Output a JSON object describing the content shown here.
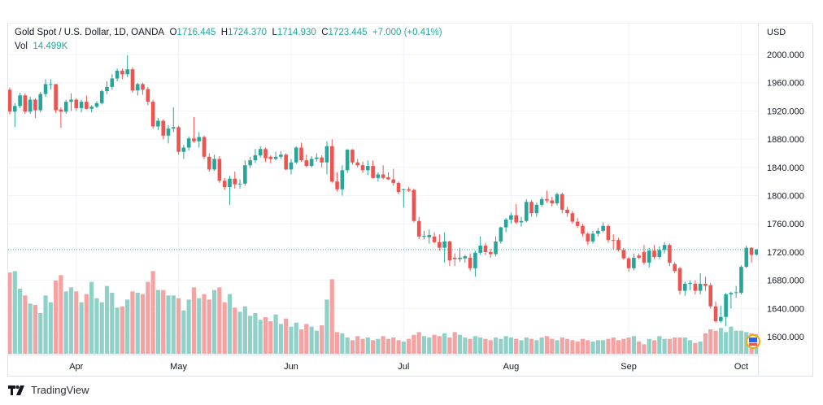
{
  "legend": {
    "symbol": "Gold Spot / U.S. Dollar, 1D, OANDA",
    "open_label": "O",
    "open": "1716.445",
    "high_label": "H",
    "high": "1724.370",
    "low_label": "L",
    "low": "1714.930",
    "close_label": "C",
    "close": "1723.445",
    "change": "+7.000 (+0.41%)",
    "vol_label": "Vol",
    "vol": "14.499K"
  },
  "currency": "USD",
  "footer": {
    "brand": "TradingView"
  },
  "colors": {
    "up": "#26a69a",
    "down": "#ef5350",
    "up_vol": "#8fd1c9",
    "down_vol": "#f5a3a2",
    "grid": "#f0f3fa",
    "text": "#131722"
  },
  "chart_data": {
    "type": "candlestick",
    "title": "Gold Spot / U.S. Dollar, 1D, OANDA",
    "ylabel": "USD",
    "ylim": [
      1575,
      2043
    ],
    "y_ticks": [
      "2000.000",
      "1960.000",
      "1920.000",
      "1880.000",
      "1840.000",
      "1800.000",
      "1760.000",
      "1720.000",
      "1680.000",
      "1640.000",
      "1600.000"
    ],
    "x_ticks": [
      {
        "label": "Apr",
        "index": 13
      },
      {
        "label": "May",
        "index": 33
      },
      {
        "label": "Jun",
        "index": 55
      },
      {
        "label": "Jul",
        "index": 77
      },
      {
        "label": "Aug",
        "index": 98
      },
      {
        "label": "Sep",
        "index": 121
      },
      {
        "label": "Oct",
        "index": 143
      }
    ],
    "last_price": 1723.445,
    "ohlc": [
      [
        1950,
        1953,
        1915,
        1919
      ],
      [
        1919,
        1931,
        1897,
        1927
      ],
      [
        1927,
        1946,
        1924,
        1942
      ],
      [
        1942,
        1945,
        1916,
        1919
      ],
      [
        1919,
        1940,
        1916,
        1936
      ],
      [
        1936,
        1938,
        1910,
        1921
      ],
      [
        1921,
        1947,
        1918,
        1944
      ],
      [
        1944,
        1965,
        1940,
        1958
      ],
      [
        1958,
        1965,
        1950,
        1958
      ],
      [
        1958,
        1958,
        1917,
        1921
      ],
      [
        1922,
        1925,
        1896,
        1919
      ],
      [
        1919,
        1936,
        1916,
        1933
      ],
      [
        1933,
        1945,
        1920,
        1936
      ],
      [
        1936,
        1938,
        1920,
        1924
      ],
      [
        1924,
        1936,
        1918,
        1933
      ],
      [
        1933,
        1942,
        1922,
        1923
      ],
      [
        1923,
        1928,
        1918,
        1926
      ],
      [
        1926,
        1934,
        1924,
        1931
      ],
      [
        1931,
        1950,
        1929,
        1948
      ],
      [
        1948,
        1962,
        1944,
        1954
      ],
      [
        1954,
        1972,
        1950,
        1966
      ],
      [
        1966,
        1980,
        1962,
        1977
      ],
      [
        1977,
        1980,
        1965,
        1972
      ],
      [
        1972,
        1999,
        1968,
        1979
      ],
      [
        1979,
        1982,
        1946,
        1949
      ],
      [
        1949,
        1960,
        1942,
        1958
      ],
      [
        1958,
        1960,
        1943,
        1950
      ],
      [
        1951,
        1954,
        1928,
        1933
      ],
      [
        1933,
        1936,
        1895,
        1898
      ],
      [
        1898,
        1910,
        1893,
        1906
      ],
      [
        1906,
        1908,
        1880,
        1885
      ],
      [
        1885,
        1900,
        1874,
        1895
      ],
      [
        1895,
        1925,
        1890,
        1897
      ],
      [
        1897,
        1899,
        1858,
        1862
      ],
      [
        1862,
        1872,
        1852,
        1868
      ],
      [
        1868,
        1884,
        1864,
        1881
      ],
      [
        1881,
        1911,
        1875,
        1877
      ],
      [
        1877,
        1890,
        1868,
        1883
      ],
      [
        1883,
        1885,
        1852,
        1855
      ],
      [
        1855,
        1860,
        1834,
        1837
      ],
      [
        1837,
        1858,
        1835,
        1852
      ],
      [
        1852,
        1856,
        1818,
        1821
      ],
      [
        1821,
        1825,
        1808,
        1812
      ],
      [
        1812,
        1828,
        1787,
        1824
      ],
      [
        1824,
        1834,
        1810,
        1816
      ],
      [
        1816,
        1823,
        1810,
        1817
      ],
      [
        1817,
        1850,
        1814,
        1843
      ],
      [
        1843,
        1855,
        1839,
        1850
      ],
      [
        1850,
        1866,
        1846,
        1857
      ],
      [
        1857,
        1870,
        1854,
        1866
      ],
      [
        1866,
        1868,
        1848,
        1853
      ],
      [
        1855,
        1857,
        1846,
        1852
      ],
      [
        1852,
        1862,
        1850,
        1855
      ],
      [
        1855,
        1863,
        1852,
        1858
      ],
      [
        1858,
        1860,
        1836,
        1837
      ],
      [
        1837,
        1852,
        1830,
        1847
      ],
      [
        1847,
        1870,
        1845,
        1868
      ],
      [
        1868,
        1875,
        1848,
        1850
      ],
      [
        1850,
        1858,
        1840,
        1842
      ],
      [
        1842,
        1856,
        1840,
        1852
      ],
      [
        1852,
        1860,
        1848,
        1854
      ],
      [
        1854,
        1857,
        1840,
        1847
      ],
      [
        1847,
        1877,
        1830,
        1870
      ],
      [
        1870,
        1880,
        1818,
        1820
      ],
      [
        1820,
        1833,
        1806,
        1809
      ],
      [
        1809,
        1843,
        1800,
        1836
      ],
      [
        1836,
        1866,
        1832,
        1865
      ],
      [
        1865,
        1866,
        1844,
        1847
      ],
      [
        1847,
        1852,
        1840,
        1843
      ],
      [
        1843,
        1848,
        1832,
        1836
      ],
      [
        1836,
        1850,
        1829,
        1842
      ],
      [
        1842,
        1850,
        1824,
        1825
      ],
      [
        1825,
        1833,
        1820,
        1830
      ],
      [
        1830,
        1843,
        1823,
        1825
      ],
      [
        1826,
        1833,
        1822,
        1823
      ],
      [
        1823,
        1838,
        1814,
        1818
      ],
      [
        1818,
        1820,
        1802,
        1805
      ],
      [
        1808,
        1810,
        1783,
        1809
      ],
      [
        1809,
        1812,
        1805,
        1807
      ],
      [
        1808,
        1810,
        1762,
        1764
      ],
      [
        1764,
        1770,
        1738,
        1742
      ],
      [
        1742,
        1750,
        1738,
        1743
      ],
      [
        1741,
        1752,
        1732,
        1744
      ],
      [
        1742,
        1748,
        1732,
        1734
      ],
      [
        1734,
        1745,
        1722,
        1726
      ],
      [
        1726,
        1748,
        1705,
        1735
      ],
      [
        1735,
        1736,
        1700,
        1708
      ],
      [
        1712,
        1718,
        1700,
        1710
      ],
      [
        1710,
        1726,
        1706,
        1712
      ],
      [
        1711,
        1716,
        1705,
        1714
      ],
      [
        1712,
        1718,
        1693,
        1697
      ],
      [
        1697,
        1722,
        1685,
        1719
      ],
      [
        1719,
        1742,
        1716,
        1729
      ],
      [
        1729,
        1733,
        1716,
        1720
      ],
      [
        1720,
        1724,
        1712,
        1717
      ],
      [
        1717,
        1742,
        1714,
        1735
      ],
      [
        1735,
        1756,
        1732,
        1755
      ],
      [
        1755,
        1768,
        1748,
        1766
      ],
      [
        1766,
        1776,
        1760,
        1772
      ],
      [
        1772,
        1788,
        1760,
        1762
      ],
      [
        1762,
        1770,
        1756,
        1764
      ],
      [
        1764,
        1795,
        1762,
        1791
      ],
      [
        1791,
        1794,
        1770,
        1775
      ],
      [
        1775,
        1790,
        1770,
        1787
      ],
      [
        1787,
        1798,
        1784,
        1795
      ],
      [
        1795,
        1807,
        1790,
        1793
      ],
      [
        1793,
        1798,
        1785,
        1789
      ],
      [
        1789,
        1804,
        1786,
        1802
      ],
      [
        1802,
        1804,
        1775,
        1780
      ],
      [
        1780,
        1784,
        1770,
        1775
      ],
      [
        1775,
        1778,
        1760,
        1763
      ],
      [
        1763,
        1768,
        1754,
        1757
      ],
      [
        1757,
        1760,
        1742,
        1746
      ],
      [
        1746,
        1748,
        1730,
        1735
      ],
      [
        1735,
        1750,
        1732,
        1746
      ],
      [
        1746,
        1754,
        1742,
        1750
      ],
      [
        1750,
        1762,
        1748,
        1757
      ],
      [
        1757,
        1759,
        1733,
        1737
      ],
      [
        1737,
        1745,
        1724,
        1736
      ],
      [
        1737,
        1740,
        1721,
        1723
      ],
      [
        1723,
        1726,
        1709,
        1711
      ],
      [
        1711,
        1713,
        1692,
        1697
      ],
      [
        1697,
        1718,
        1694,
        1712
      ],
      [
        1715,
        1718,
        1710,
        1712
      ],
      [
        1720,
        1730,
        1702,
        1705
      ],
      [
        1705,
        1726,
        1698,
        1722
      ],
      [
        1722,
        1730,
        1710,
        1713
      ],
      [
        1713,
        1728,
        1710,
        1723
      ],
      [
        1723,
        1734,
        1718,
        1730
      ],
      [
        1730,
        1732,
        1700,
        1705
      ],
      [
        1703,
        1706,
        1690,
        1693
      ],
      [
        1697,
        1699,
        1660,
        1665
      ],
      [
        1665,
        1678,
        1658,
        1675
      ],
      [
        1675,
        1680,
        1666,
        1676
      ],
      [
        1675,
        1680,
        1660,
        1665
      ],
      [
        1665,
        1690,
        1660,
        1675
      ],
      [
        1675,
        1685,
        1665,
        1672
      ],
      [
        1673,
        1676,
        1640,
        1643
      ],
      [
        1643,
        1650,
        1620,
        1622
      ],
      [
        1622,
        1644,
        1620,
        1628
      ],
      [
        1628,
        1662,
        1615,
        1660
      ],
      [
        1660,
        1664,
        1640,
        1662
      ],
      [
        1662,
        1672,
        1655,
        1663
      ],
      [
        1662,
        1701,
        1660,
        1699
      ],
      [
        1699,
        1729,
        1697,
        1726
      ],
      [
        1726,
        1727,
        1705,
        1716
      ],
      [
        1716.445,
        1724.37,
        1714.93,
        1723.445
      ]
    ],
    "volume_k": [
      60,
      61,
      48,
      43,
      37,
      36,
      30,
      43,
      38,
      54,
      58,
      46,
      49,
      46,
      38,
      44,
      53,
      41,
      38,
      50,
      45,
      34,
      35,
      40,
      46,
      45,
      44,
      53,
      61,
      47,
      47,
      43,
      43,
      41,
      32,
      40,
      49,
      41,
      44,
      40,
      47,
      49,
      38,
      44,
      34,
      31,
      35,
      28,
      30,
      25,
      27,
      24,
      29,
      22,
      26,
      20,
      23,
      18,
      22,
      20,
      17,
      21,
      40,
      55,
      16,
      15,
      12,
      10,
      13,
      11,
      12,
      10,
      11,
      13,
      11,
      12,
      10,
      9,
      11,
      14,
      16,
      13,
      12,
      14,
      13,
      15,
      12,
      16,
      14,
      12,
      11,
      13,
      12,
      11,
      10,
      12,
      11,
      13,
      12,
      11,
      10,
      12,
      11,
      10,
      12,
      13,
      11,
      10,
      12,
      11,
      10,
      9,
      11,
      10,
      9,
      10,
      10,
      11,
      12,
      10,
      11,
      12,
      13,
      9,
      7,
      11,
      10,
      13,
      11,
      11,
      12,
      12,
      12,
      10,
      8,
      9,
      15,
      18,
      17,
      19,
      16,
      20,
      17,
      17,
      16,
      15,
      14.499
    ]
  }
}
